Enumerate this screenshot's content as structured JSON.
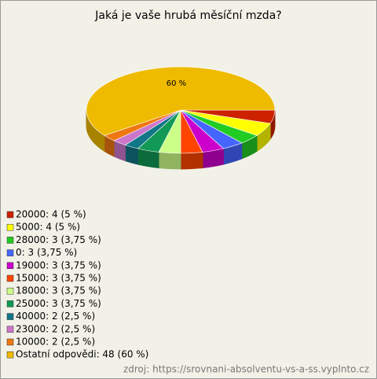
{
  "chart_data": {
    "type": "pie",
    "title": "Jaká je vaše hrubá měsíční mzda?",
    "categories": [
      "20000",
      "5000",
      "28000",
      "0",
      "19000",
      "15000",
      "18000",
      "25000",
      "40000",
      "23000",
      "10000",
      "Ostatní odpovědi"
    ],
    "values": [
      5,
      5,
      3.75,
      3.75,
      3.75,
      3.75,
      3.75,
      3.75,
      2.5,
      2.5,
      2.5,
      60
    ],
    "value_labels": [
      null,
      null,
      null,
      null,
      null,
      null,
      null,
      null,
      null,
      null,
      null,
      "60 %"
    ],
    "legend_labels": [
      "20000: 4 (5 %)",
      "5000: 4 (5 %)",
      "28000: 3 (3,75 %)",
      "0: 3 (3,75 %)",
      "19000: 3 (3,75 %)",
      "15000: 3 (3,75 %)",
      "18000: 3 (3,75 %)",
      "25000: 3 (3,75 %)",
      "40000: 2 (2,5 %)",
      "23000: 2 (2,5 %)",
      "10000: 2 (2,5 %)",
      "Ostatní odpovědi: 48 (60 %)"
    ],
    "colors": [
      "#cc2200",
      "#ffff00",
      "#22cc22",
      "#4466ff",
      "#cc00cc",
      "#ff4400",
      "#ccff88",
      "#119955",
      "#117788",
      "#cc77cc",
      "#ee7711",
      "#eebb00"
    ],
    "source": "zdroj: https://srovnani-absolventu-vs-a-ss.vyplnto.cz"
  }
}
